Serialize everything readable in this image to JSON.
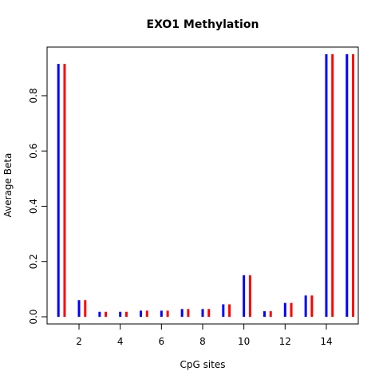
{
  "chart_data": {
    "type": "bar",
    "title": "EXO1 Methylation",
    "xlabel": "CpG sites",
    "ylabel": "Average Beta",
    "x": [
      1,
      2,
      3,
      4,
      5,
      6,
      7,
      8,
      9,
      10,
      11,
      12,
      13,
      14,
      15
    ],
    "xlim": [
      0.45,
      15.55
    ],
    "ylim": [
      -0.026,
      0.976
    ],
    "xticks": [
      2,
      4,
      6,
      8,
      10,
      12,
      14
    ],
    "yticks": [
      0.0,
      0.2,
      0.4,
      0.6,
      0.8
    ],
    "ytick_labels": [
      "0.0",
      "0.2",
      "0.4",
      "0.6",
      "0.8"
    ],
    "grid": false,
    "legend": "none",
    "series": [
      {
        "color": "#0000ff",
        "offset": 0,
        "values": [
          0.915,
          0.06,
          0.018,
          0.018,
          0.022,
          0.022,
          0.028,
          0.028,
          0.045,
          0.15,
          0.02,
          0.05,
          0.077,
          0.95,
          0.95
        ]
      },
      {
        "color": "#ff0000",
        "offset": 0.3,
        "values": [
          0.915,
          0.06,
          0.018,
          0.018,
          0.022,
          0.022,
          0.028,
          0.028,
          0.045,
          0.15,
          0.02,
          0.05,
          0.077,
          0.95,
          0.95
        ]
      }
    ]
  }
}
